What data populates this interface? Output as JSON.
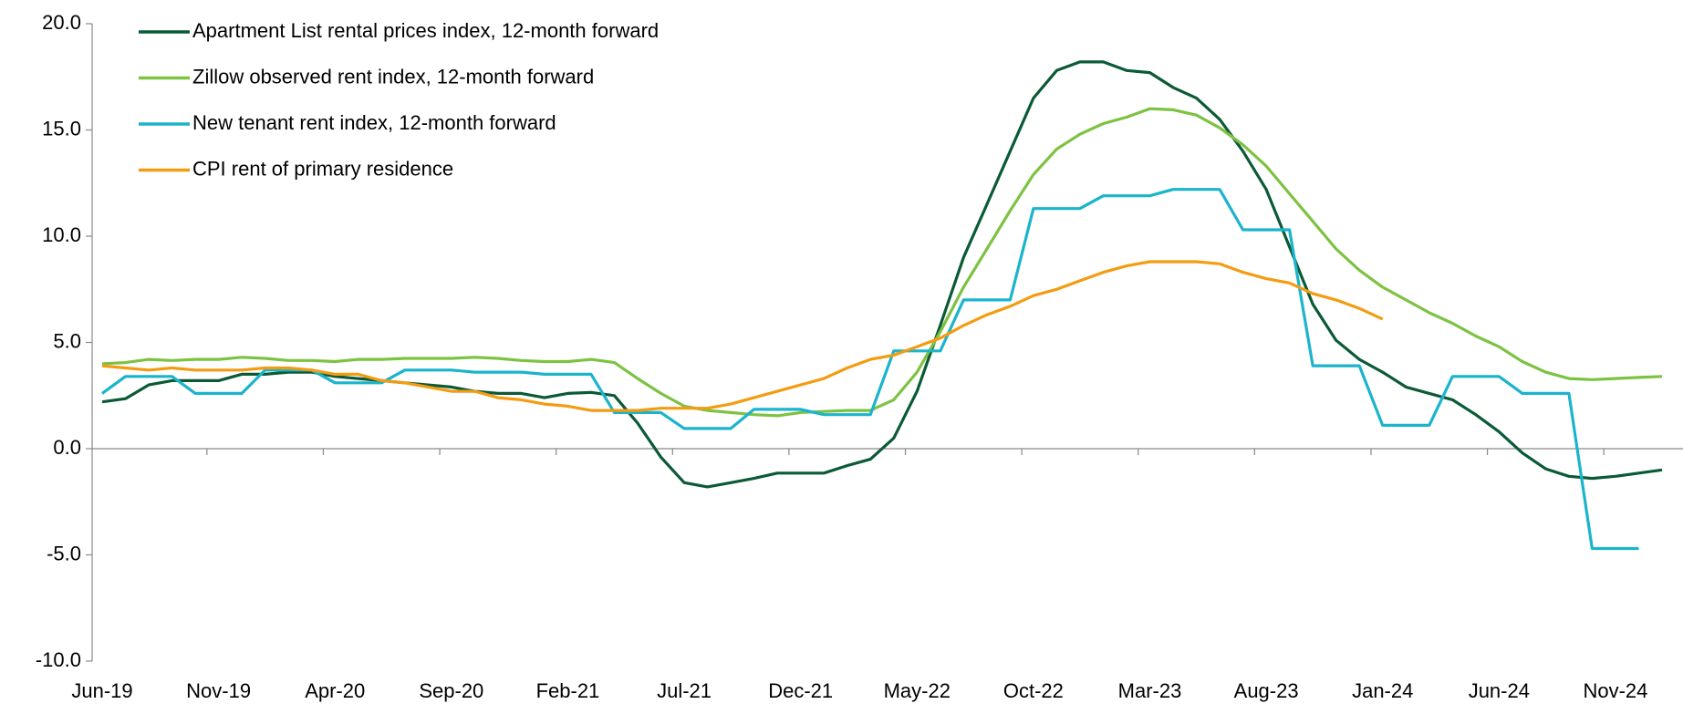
{
  "chart_data": {
    "type": "line",
    "categories": [
      "Jun-19",
      null,
      null,
      null,
      null,
      "Nov-19",
      null,
      null,
      null,
      null,
      "Apr-20",
      null,
      null,
      null,
      null,
      "Sep-20",
      null,
      null,
      null,
      null,
      "Feb-21",
      null,
      null,
      null,
      null,
      "Jul-21",
      null,
      null,
      null,
      null,
      "Dec-21",
      null,
      null,
      null,
      null,
      "May-22",
      null,
      null,
      null,
      null,
      "Oct-22",
      null,
      null,
      null,
      null,
      "Mar-23",
      null,
      null,
      null,
      null,
      "Aug-23",
      null,
      null,
      null,
      null,
      "Jan-24",
      null,
      null,
      null,
      null,
      "Jun-24",
      null,
      null,
      null,
      null,
      "Nov-24",
      null,
      null
    ],
    "series": [
      {
        "name": "Apartment List rental prices index, 12-month forward",
        "color": "#0b5a36",
        "values": [
          2.2,
          2.35,
          3.0,
          3.2,
          3.2,
          3.2,
          3.5,
          3.5,
          3.6,
          3.6,
          3.4,
          3.3,
          3.2,
          3.1,
          3.0,
          2.9,
          2.7,
          2.6,
          2.6,
          2.4,
          2.6,
          2.65,
          2.5,
          1.2,
          -0.4,
          -1.6,
          -1.8,
          -1.6,
          -1.4,
          -1.15,
          -1.15,
          -1.15,
          -0.8,
          -0.5,
          0.5,
          2.7,
          5.8,
          9.0,
          11.5,
          14.0,
          16.5,
          17.8,
          18.2,
          18.2,
          17.8,
          17.7,
          17.0,
          16.5,
          15.5,
          14.0,
          12.2,
          9.5,
          6.8,
          5.1,
          4.2,
          3.6,
          2.9,
          2.6,
          2.3,
          1.6,
          0.8,
          -0.2,
          -0.95,
          -1.3,
          -1.4,
          -1.3,
          -1.15,
          -1.0
        ]
      },
      {
        "name": "Zillow observed rent index, 12-month forward",
        "color": "#7dc242",
        "values": [
          4.0,
          4.05,
          4.2,
          4.15,
          4.2,
          4.2,
          4.3,
          4.25,
          4.15,
          4.15,
          4.1,
          4.2,
          4.2,
          4.25,
          4.25,
          4.25,
          4.3,
          4.25,
          4.15,
          4.1,
          4.1,
          4.2,
          4.05,
          3.3,
          2.6,
          2.0,
          1.8,
          1.7,
          1.6,
          1.55,
          1.7,
          1.75,
          1.8,
          1.8,
          2.3,
          3.6,
          5.5,
          7.6,
          9.4,
          11.2,
          12.9,
          14.1,
          14.8,
          15.3,
          15.6,
          16.0,
          15.95,
          15.7,
          15.1,
          14.3,
          13.3,
          12.0,
          10.7,
          9.4,
          8.4,
          7.6,
          7.0,
          6.4,
          5.9,
          5.3,
          4.8,
          4.1,
          3.6,
          3.3,
          3.25,
          3.3,
          3.35,
          3.4
        ]
      },
      {
        "name": "New tenant rent index, 12-month forward",
        "color": "#1ab4cc",
        "values": [
          2.6,
          3.4,
          3.4,
          3.4,
          2.6,
          2.6,
          2.6,
          3.7,
          3.7,
          3.7,
          3.1,
          3.1,
          3.1,
          3.7,
          3.7,
          3.7,
          3.6,
          3.6,
          3.6,
          3.5,
          3.5,
          3.5,
          1.7,
          1.7,
          1.7,
          0.95,
          0.95,
          0.95,
          1.85,
          1.85,
          1.85,
          1.6,
          1.6,
          1.6,
          4.6,
          4.6,
          4.6,
          7.0,
          7.0,
          7.0,
          11.3,
          11.3,
          11.3,
          11.9,
          11.9,
          11.9,
          12.2,
          12.2,
          12.2,
          10.3,
          10.3,
          10.3,
          3.9,
          3.9,
          3.9,
          1.1,
          1.1,
          1.1,
          3.4,
          3.4,
          3.4,
          2.6,
          2.6,
          2.6,
          -4.7,
          -4.7,
          -4.7,
          null
        ]
      },
      {
        "name": "CPI rent of primary residence",
        "color": "#f39c12",
        "values": [
          3.9,
          3.8,
          3.7,
          3.8,
          3.7,
          3.7,
          3.7,
          3.8,
          3.8,
          3.7,
          3.5,
          3.5,
          3.2,
          3.1,
          2.9,
          2.7,
          2.7,
          2.4,
          2.3,
          2.1,
          2.0,
          1.8,
          1.8,
          1.8,
          1.9,
          1.9,
          1.9,
          2.1,
          2.4,
          2.7,
          3.0,
          3.3,
          3.8,
          4.2,
          4.4,
          4.8,
          5.2,
          5.8,
          6.3,
          6.7,
          7.2,
          7.5,
          7.9,
          8.3,
          8.6,
          8.8,
          8.8,
          8.8,
          8.7,
          8.3,
          8.0,
          7.8,
          7.3,
          7.0,
          6.6,
          6.1,
          null,
          null,
          null,
          null,
          null,
          null,
          null,
          null,
          null,
          null,
          null,
          null
        ]
      }
    ],
    "ylim": [
      -10,
      20
    ],
    "yticks": [
      {
        "value": -10,
        "label": "-10.0"
      },
      {
        "value": -5,
        "label": "-5.0"
      },
      {
        "value": 0,
        "label": "0.0"
      },
      {
        "value": 5,
        "label": "5.0"
      },
      {
        "value": 10,
        "label": "10.0"
      },
      {
        "value": 15,
        "label": "15.0"
      },
      {
        "value": 20,
        "label": "20.0"
      }
    ],
    "legend": "upper left",
    "grid": false
  }
}
